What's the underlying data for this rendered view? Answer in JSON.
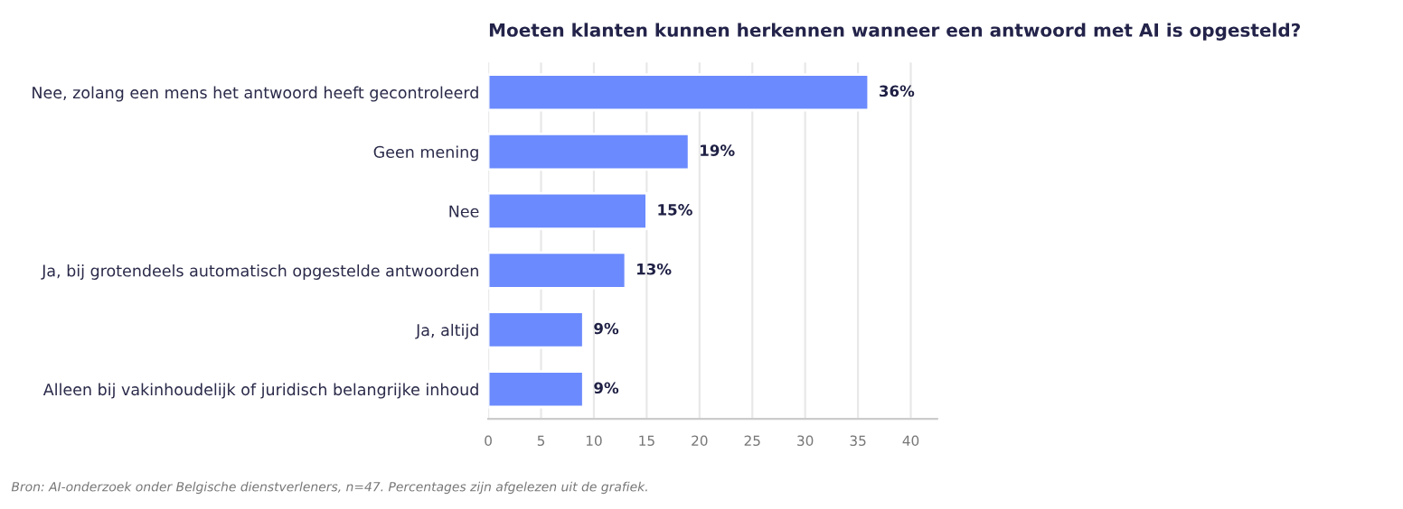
{
  "chart_data": {
    "type": "bar",
    "orientation": "horizontal",
    "title": "Moeten klanten kunnen herkennen wanneer een antwoord met AI is opgesteld?",
    "categories": [
      "Nee, zolang een mens het antwoord heeft gecontroleerd",
      "Geen mening",
      "Nee",
      "Ja, bij grotendeels automatisch opgestelde antwoorden",
      "Ja, altijd",
      "Alleen bij vakinhoudelijk of juridisch belangrijke inhoud"
    ],
    "values": [
      36,
      19,
      15,
      13,
      9,
      9
    ],
    "value_labels": [
      "36%",
      "19%",
      "15%",
      "13%",
      "9%",
      "9%"
    ],
    "color": "#6b8afd",
    "xlim": [
      0,
      42.5
    ],
    "xticks": [
      0,
      5,
      10,
      15,
      20,
      25,
      30,
      35,
      40
    ],
    "grid": "x",
    "legend": false,
    "annotations": [
      "Bron: AI-onderzoek onder Belgische dienstverleners, n=47. Percentages zijn afgelezen uit de grafiek."
    ]
  }
}
